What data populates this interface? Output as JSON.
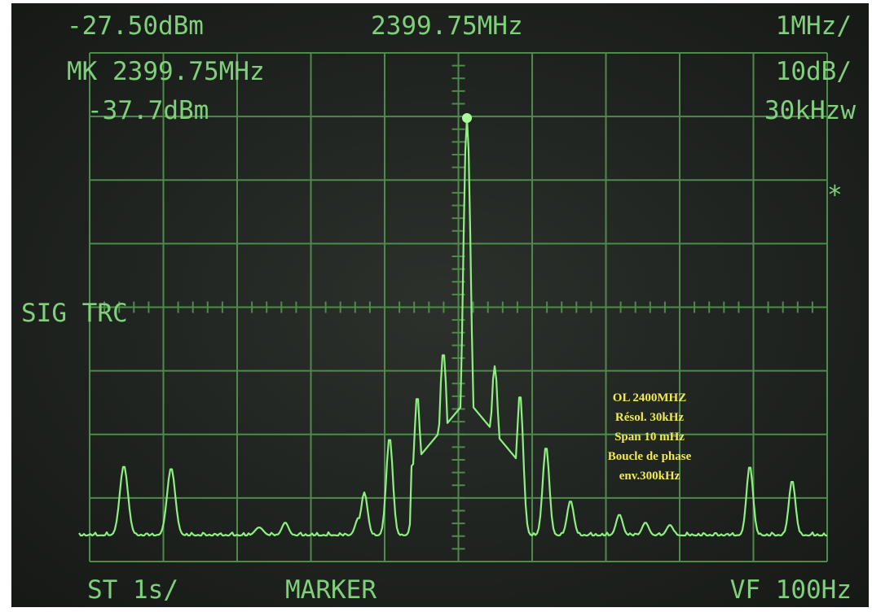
{
  "display": {
    "top_left": "-27.50dBm",
    "top_center": "2399.75MHz",
    "top_right": "1MHz/",
    "marker_label": "MK 2399.75MHz",
    "marker_level": "-37.7dBm",
    "scale": "10dB/",
    "rbw": "30kHzw",
    "star": "*",
    "sig_trc": "SIG TRC",
    "bottom_left": "ST 1s/",
    "bottom_center": "MARKER",
    "bottom_right": "VF 100Hz"
  },
  "annotation": {
    "lines": [
      "OL 2400MHZ",
      "Résol. 30kHz",
      "Span 10 mHz",
      "Boucle de phase",
      "env.300kHz"
    ]
  }
}
